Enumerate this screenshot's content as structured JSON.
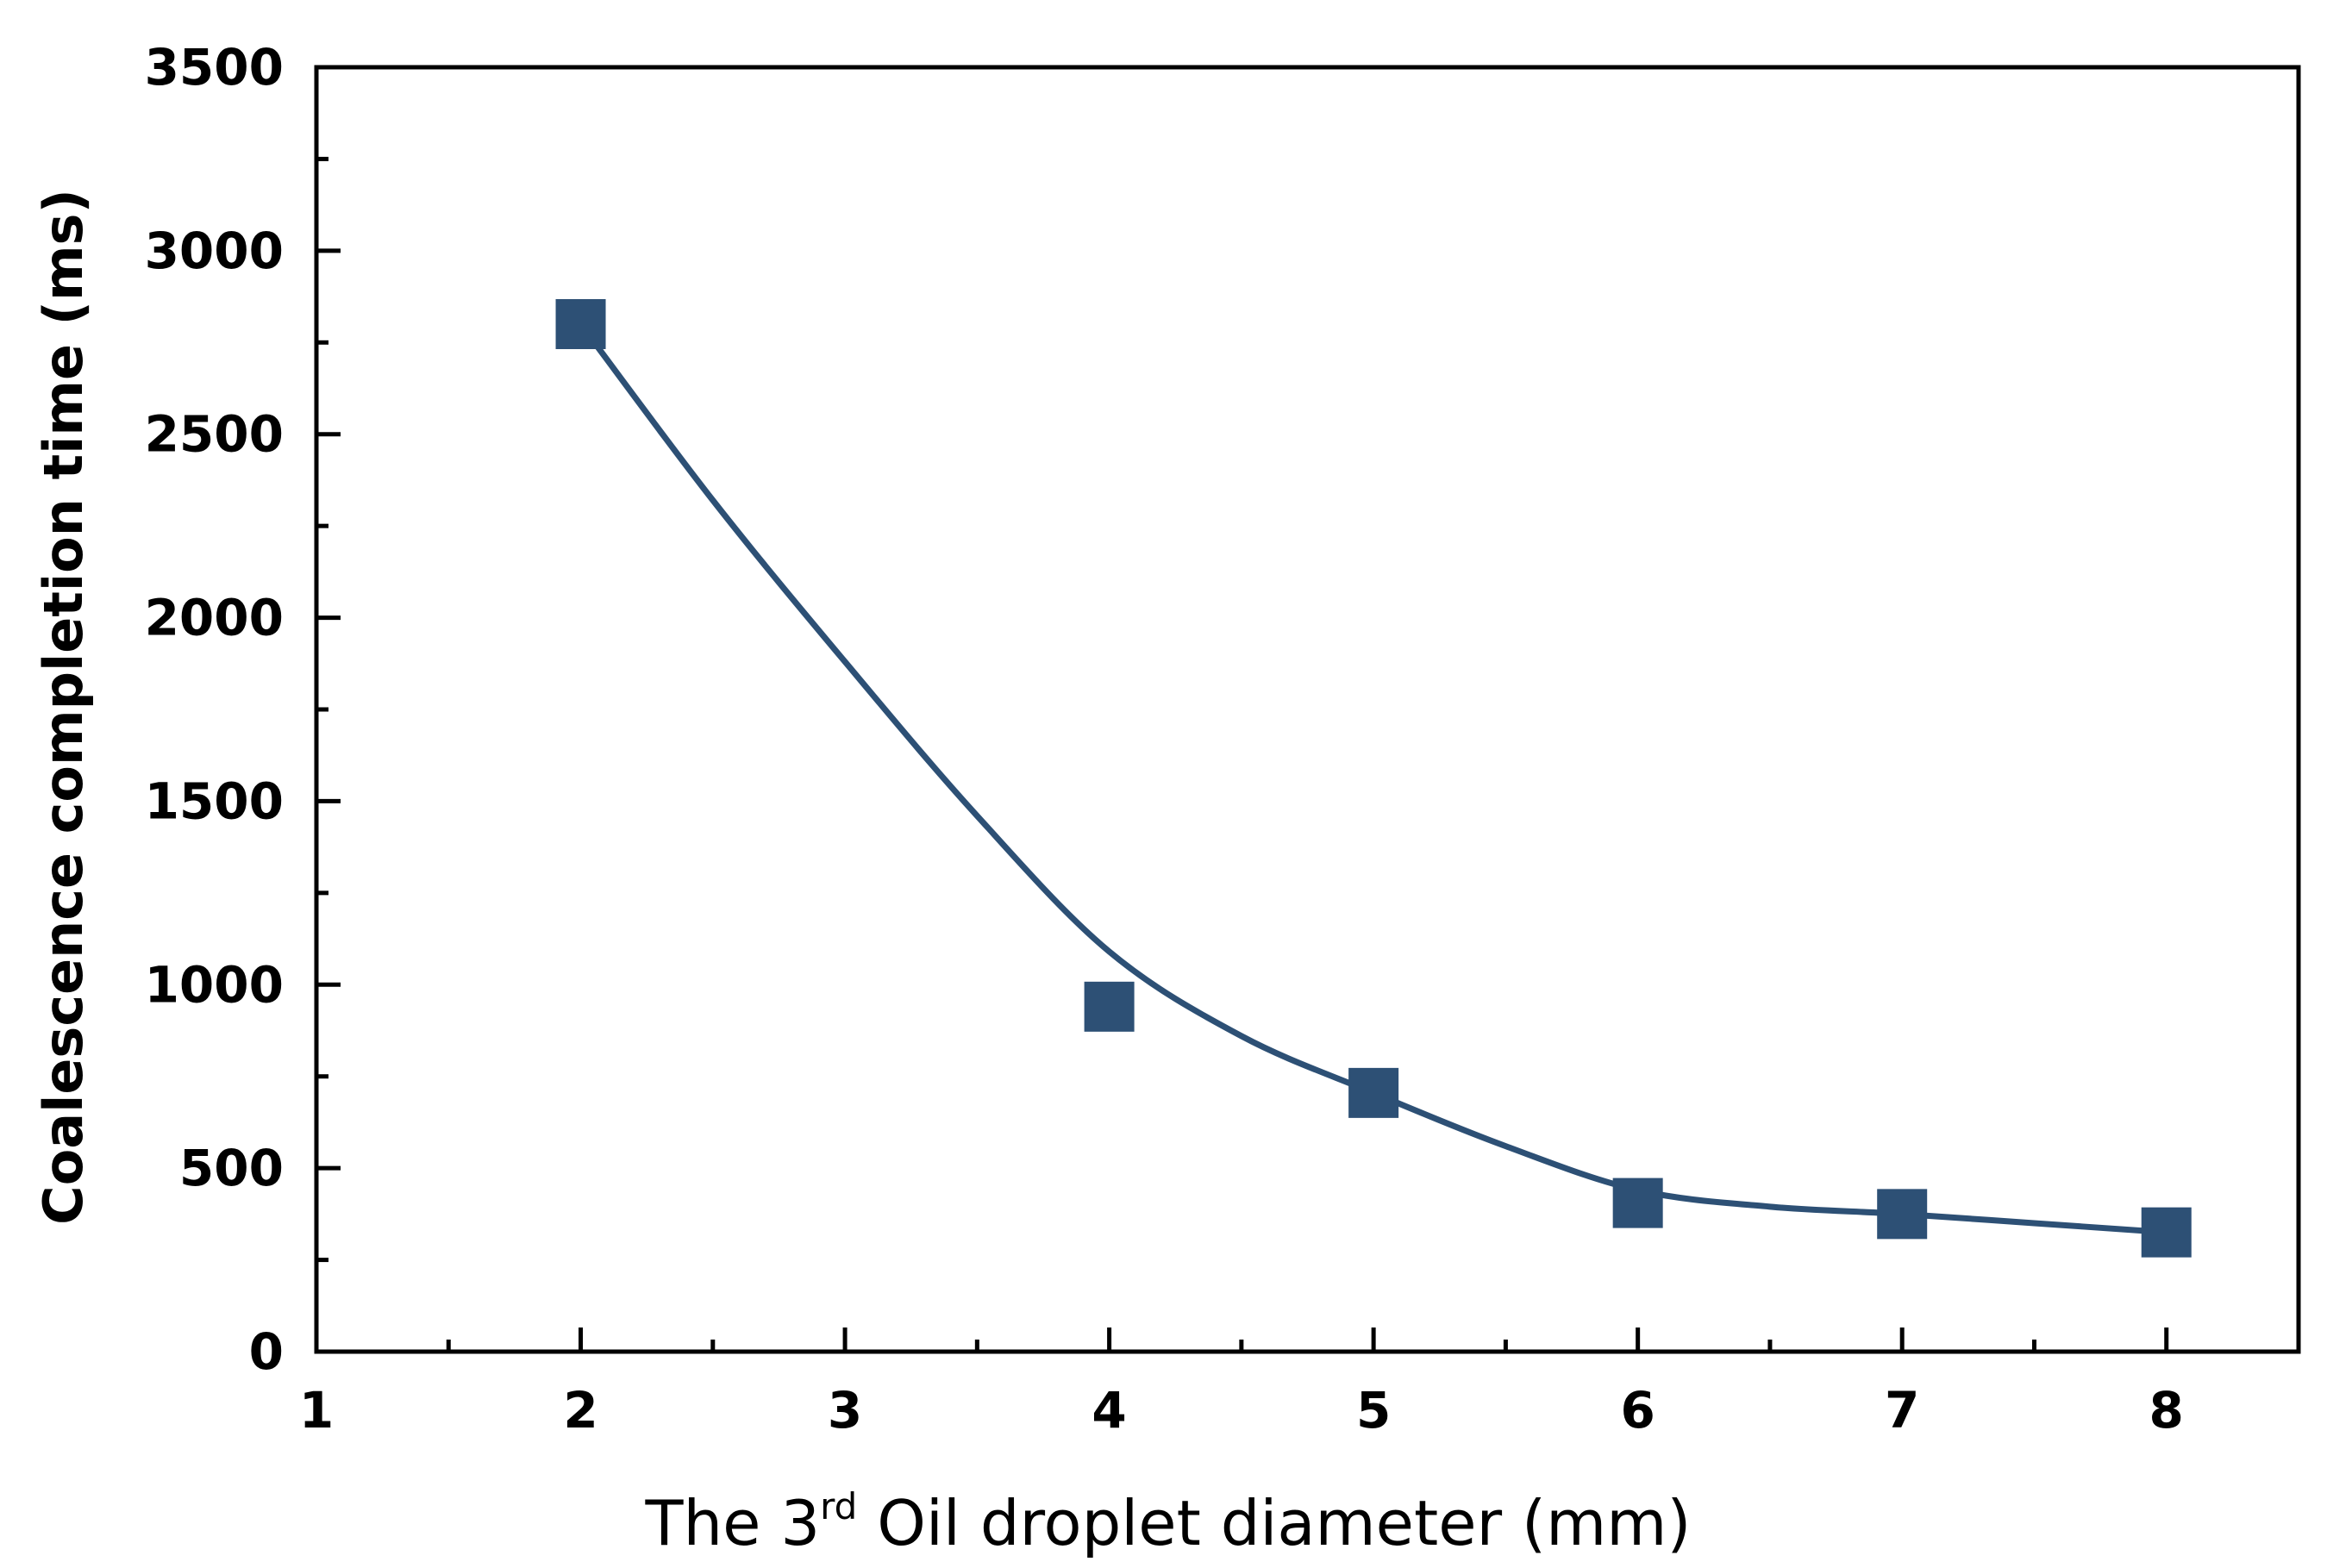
{
  "chart_data": {
    "type": "scatter",
    "xlabel": {
      "prefix": "The 3",
      "superscript": "rd",
      "suffix": " Oil droplet diameter (mm)"
    },
    "ylabel": "Coalescence completion time (ms)",
    "xlim": [
      1,
      8.5
    ],
    "ylim": [
      0,
      3500
    ],
    "xticks": [
      1,
      2,
      3,
      4,
      5,
      6,
      7,
      8
    ],
    "yticks": [
      0,
      500,
      1000,
      1500,
      2000,
      2500,
      3000,
      3500
    ],
    "grid": false,
    "legend": "none",
    "series": [
      {
        "marker": "square",
        "color": "#2d5075",
        "x": [
          2,
          4,
          5,
          6,
          7,
          8
        ],
        "y": [
          2800,
          940,
          705,
          405,
          375,
          325
        ]
      }
    ],
    "fit_curve": {
      "color": "#2d5075",
      "x": [
        2,
        2.5,
        3,
        3.5,
        4,
        4.5,
        5,
        5.5,
        6,
        6.5,
        7,
        7.5,
        8
      ],
      "y": [
        2800,
        2320,
        1880,
        1460,
        1090,
        860,
        705,
        560,
        440,
        395,
        375,
        350,
        325
      ]
    }
  }
}
